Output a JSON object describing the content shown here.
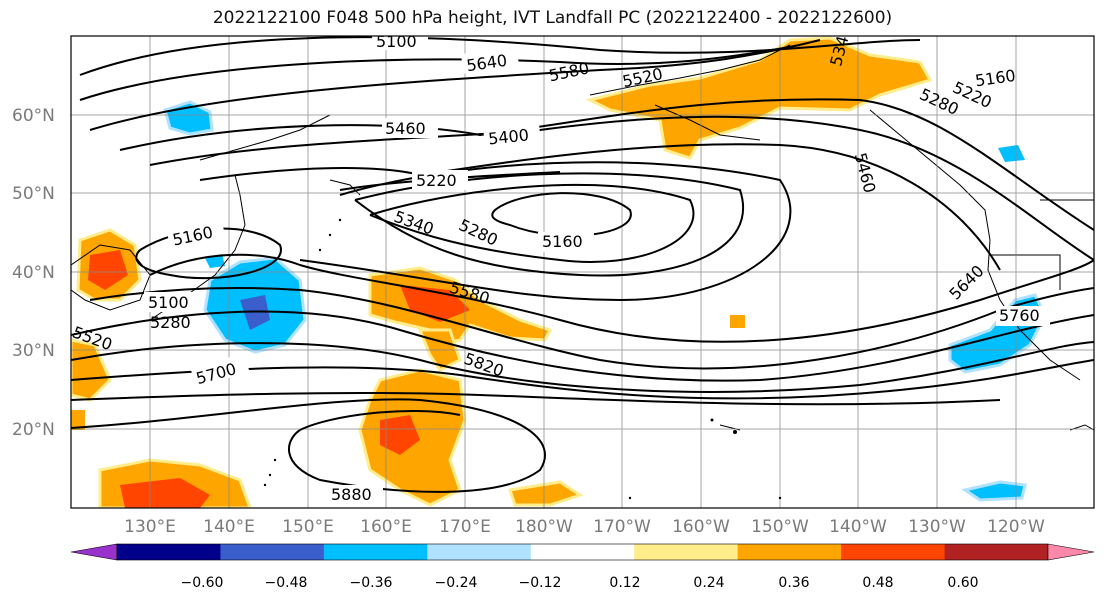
{
  "title": "2022122100 F048 500 hPa height, IVT Landfall PC (2022122400 - 2022122600)",
  "lat_labels": [
    "60°N",
    "50°N",
    "40°N",
    "30°N",
    "20°N"
  ],
  "lon_labels": [
    "130°E",
    "140°E",
    "150°E",
    "160°E",
    "170°E",
    "180°W",
    "170°W",
    "160°W",
    "150°W",
    "140°W",
    "130°W",
    "120°W"
  ],
  "contour_labels": [
    "5100",
    "5640",
    "5580",
    "5520",
    "5400",
    "5340",
    "5160",
    "5220",
    "5280",
    "5460",
    "5460",
    "5220",
    "5160",
    "5340",
    "5280",
    "5160",
    "5100",
    "5280",
    "5520",
    "5580",
    "5640",
    "5760",
    "5700",
    "5820",
    "5880",
    "5340",
    "5400"
  ],
  "colorbar": {
    "colors": [
      "#9932CC",
      "#00008B",
      "#3A5FCD",
      "#00BFFF",
      "#B0E2FF",
      "#FFFFFF",
      "#FFEC8B",
      "#FFA500",
      "#FF4500",
      "#B22222",
      "#FF88AA"
    ],
    "tick_labels": [
      "−0.60",
      "−0.48",
      "−0.36",
      "−0.24",
      "−0.12",
      "0.12",
      "0.24",
      "0.36",
      "0.48",
      "0.60"
    ]
  }
}
